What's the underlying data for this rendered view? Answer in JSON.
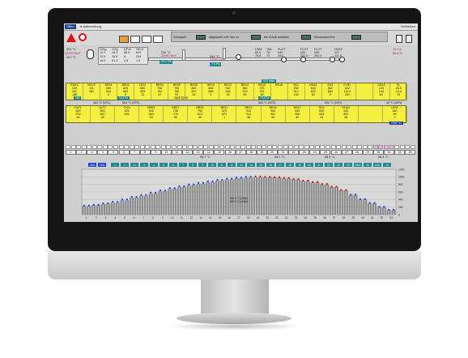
{
  "topbar": {
    "status_button": "Offen",
    "tab": "Aufbereitung",
    "close": "Schließen"
  },
  "controls": {
    "labels": [
      "Schubpeil",
      "abgelaufen seit Tore zu",
      "bis Schub auslösen",
      "Schubmaschine"
    ],
    "indicator_color": "#4a6d65"
  },
  "process": {
    "left_block": [
      "201 °C",
      "22300 Nm³",
      "257 °C"
    ],
    "o2_block": {
      "headers": [
        "O2rg",
        "LIZg",
        "NFvZ",
        "NFvZ"
      ],
      "rows": [
        [
          "10.1",
          "15.3",
          "85.0",
          "624"
        ],
        [
          "12.6",
          "15.8",
          "8",
          "534"
        ],
        [
          "16.0",
          "61.3",
          "1.6",
          "1.6"
        ]
      ]
    },
    "center_top": [
      "244 °C",
      "22060 Nm³"
    ],
    "center_badge": "24.1 Pa",
    "center_mid": [
      "261 °C",
      "22060 Nm³"
    ],
    "center_badge2": "7.4 Pa",
    "rblock_header": [
      "LWM",
      "TBL",
      "FLOT"
    ],
    "rblock_rows": [
      [
        "60.0",
        "75",
        "340"
      ],
      [
        "75.6",
        "73",
        "343"
      ]
    ],
    "float_header": [
      "FLOT",
      "FLOT"
    ],
    "float_rows": [
      [
        "220",
        "290"
      ],
      [
        "221.0",
        "290.0"
      ]
    ],
    "hlr": {
      "header": "HLR2",
      "rows": [
        "107",
        "111.8",
        "108.0"
      ]
    },
    "right_magenta": [
      "12.0 A",
      "60.4 %"
    ]
  },
  "upper_table": {
    "zones": [
      "RGKL",
      "NGVF",
      "BR01",
      "BR02",
      "LE01",
      "BR04",
      "BR05",
      "BR06",
      "BR10",
      "BR12",
      "BR14",
      "BR15",
      "BR16",
      "SK1",
      "ODA1",
      "SK3",
      "FLR1",
      "",
      "ODA2",
      "SL"
    ],
    "rows": [
      [
        "230",
        "411",
        "600",
        "620",
        "660",
        "756",
        "795",
        "840",
        "896",
        "940",
        "960",
        "975",
        "",
        "890",
        "630",
        "562",
        "182",
        "",
        "140",
        "-20.0"
      ],
      [
        "207",
        "451",
        "534",
        "563",
        "639",
        "754",
        "790",
        "837",
        "896",
        "935",
        "979",
        "971",
        "",
        "912",
        "632",
        "654",
        "111.5",
        "",
        "244",
        "-14.4"
      ],
      [
        "188",
        "",
        "2",
        "6",
        "13",
        "57",
        "57",
        "26",
        "3",
        "33",
        "90",
        "80",
        "",
        "100",
        "50",
        "0",
        "220",
        "",
        "60",
        "70"
      ]
    ],
    "badges": [
      "100",
      "14.4 Pa",
      "32.9 °C/V2",
      "73.3 Pa",
      "16.0 mbar"
    ],
    "footer": [
      "461 °C (VF1)",
      "564 °C (VF2)",
      "564 °C (NT2)",
      "500 °C (NF2)",
      "45 °C (NF3)"
    ]
  },
  "lower_table": {
    "zones": [
      "DzT1",
      "DzT2",
      "TvZu",
      "BR03",
      "BR07",
      "BR09",
      "BR11",
      "BR13",
      "BR15",
      "BR17",
      "SK2",
      "ODA2",
      "",
      "LE02"
    ],
    "rows": [
      [
        "600",
        "600",
        "626",
        "900",
        "735",
        "790",
        "870",
        "915",
        "963",
        "955",
        "839",
        "515",
        "",
        "340"
      ],
      [
        "576",
        "657",
        "534",
        "664",
        "776",
        "813",
        "874",
        "914",
        "961",
        "958",
        "833",
        "692",
        "",
        "59"
      ],
      [
        "44",
        "35",
        "",
        "29",
        "50",
        "49",
        "1",
        "36",
        "90",
        "90",
        "25",
        "95",
        "",
        "0"
      ]
    ],
    "footer_badge": "ZOKP 12"
  },
  "numbers": [
    "1",
    "2",
    "3",
    "4",
    "5",
    "6",
    "7",
    "8",
    "9",
    "10",
    "11",
    "12",
    "13",
    "14",
    "15",
    "16",
    "17",
    "18",
    "19",
    "20",
    "21",
    "22",
    "23",
    "24",
    "25",
    "26",
    "27",
    "28",
    "29",
    "30",
    "31",
    "32",
    "33"
  ],
  "mid_labels": [
    "98.7 °C",
    "98.7 °C",
    "88.3 °C",
    "98.3 °C"
  ],
  "chart_badges": [
    "AXA",
    "XXA",
    "1",
    "2",
    "L1",
    "3",
    "4",
    "5",
    "6",
    "7",
    "8",
    "9",
    "10",
    "11",
    "12",
    "13",
    "14",
    "15",
    "16",
    "17",
    "18",
    "19",
    "20",
    "21",
    "22",
    "23",
    "24",
    "ODA",
    "93",
    "LDA",
    "12"
  ],
  "chart_data": {
    "type": "bar",
    "categories": [
      "1",
      "2",
      "3",
      "4",
      "5",
      "6",
      "7",
      "8",
      "9",
      "10",
      "11",
      "12",
      "13",
      "14",
      "15",
      "16",
      "17",
      "18",
      "19",
      "20",
      "21",
      "22",
      "23",
      "24",
      "25",
      "26",
      "27",
      "28",
      "29",
      "30",
      "31",
      "32",
      "33"
    ],
    "yticks": [
      0,
      200,
      400,
      600,
      800,
      1000,
      1200
    ],
    "ylim": [
      0,
      1200
    ],
    "series": [
      {
        "values": [
          230,
          250,
          280,
          320,
          380,
          450,
          500,
          560,
          620,
          680,
          730,
          780,
          820,
          860,
          900,
          930,
          960,
          980,
          990,
          990,
          980,
          960,
          930,
          890,
          850,
          800,
          730,
          640,
          520,
          400,
          300,
          200,
          120
        ]
      }
    ],
    "profile_line": [
      240,
      260,
      300,
      340,
      400,
      470,
      520,
      580,
      640,
      700,
      750,
      800,
      840,
      880,
      920,
      950,
      980,
      1000,
      1010,
      1000,
      990,
      970,
      940,
      900,
      860,
      810,
      740,
      650,
      530,
      410,
      310,
      210,
      130
    ],
    "annotation": [
      "262.5 °C (Ofen)",
      "262.5 °C (Ofen)"
    ],
    "colors": {
      "blue": "#1f3fd8",
      "red": "#d11010",
      "bars": "#8a8a8a"
    }
  }
}
